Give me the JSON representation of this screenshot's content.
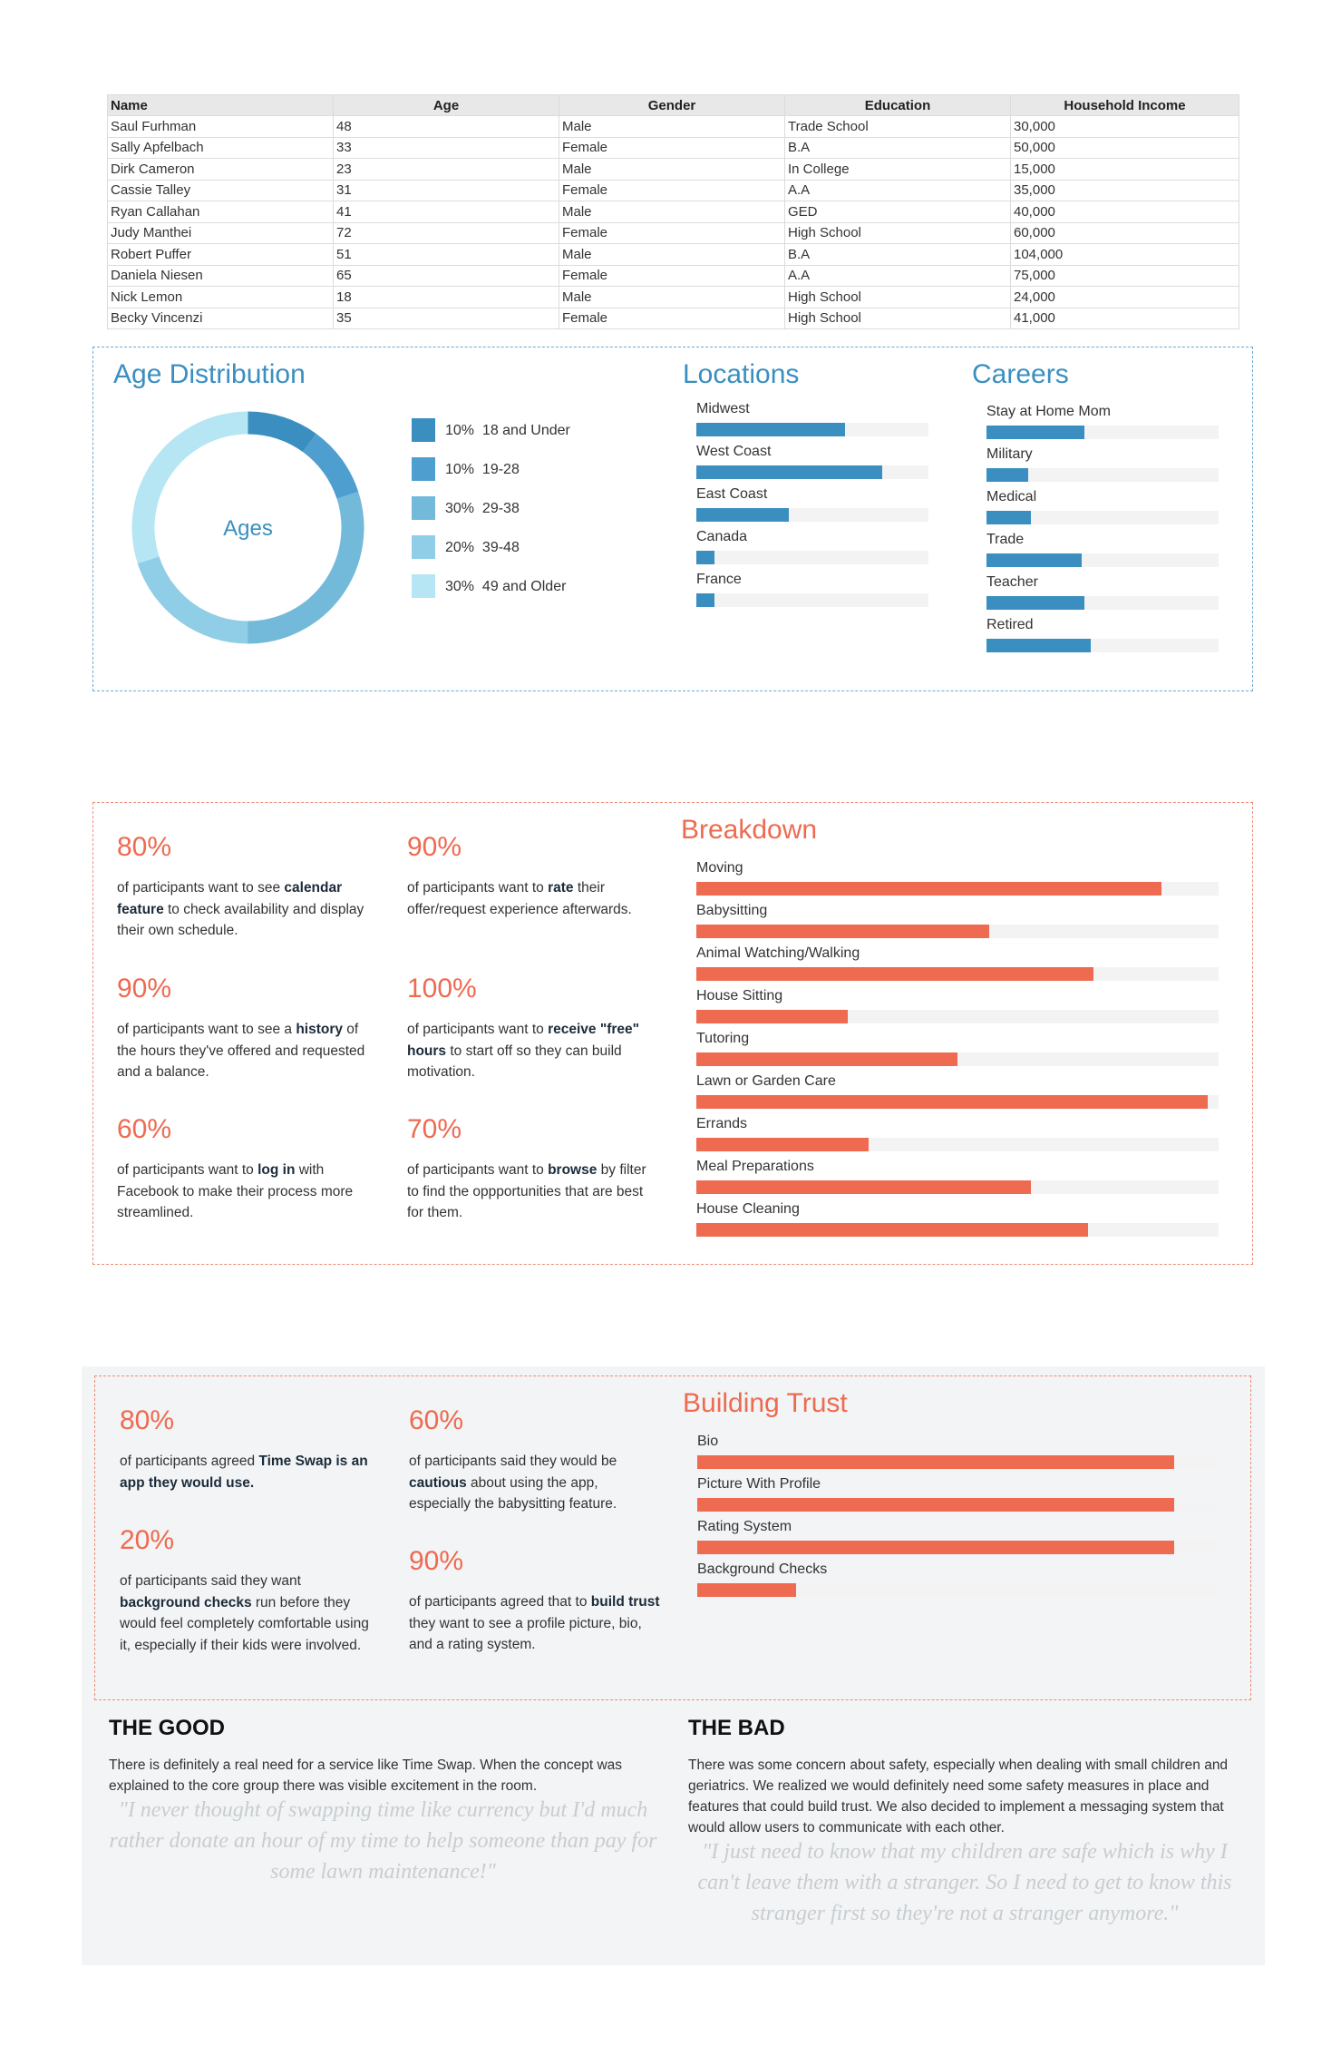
{
  "participants": {
    "headers": [
      "Name",
      "Age",
      "Gender",
      "Education",
      "Household Income"
    ],
    "rows": [
      [
        "Saul Furhman",
        "48",
        "Male",
        "Trade School",
        "30,000"
      ],
      [
        "Sally Apfelbach",
        "33",
        "Female",
        "B.A",
        "50,000"
      ],
      [
        "Dirk Cameron",
        "23",
        "Male",
        "In College",
        "15,000"
      ],
      [
        "Cassie Talley",
        "31",
        "Female",
        "A.A",
        "35,000"
      ],
      [
        "Ryan Callahan",
        "41",
        "Male",
        "GED",
        "40,000"
      ],
      [
        "Judy Manthei",
        "72",
        "Female",
        "High School",
        "60,000"
      ],
      [
        "Robert Puffer",
        "51",
        "Male",
        "B.A",
        "104,000"
      ],
      [
        "Daniela Niesen",
        "65",
        "Female",
        "A.A",
        "75,000"
      ],
      [
        "Nick Lemon",
        "18",
        "Male",
        "High School",
        "24,000"
      ],
      [
        "Becky Vincenzi",
        "35",
        "Female",
        "High School",
        "41,000"
      ]
    ]
  },
  "demographics": {
    "age_title": "Age Distribution",
    "donut_center": "Ages",
    "age_segments": [
      {
        "pct_label": "10%",
        "label": "18 and Under",
        "value": 10,
        "color": "#3a8fc0"
      },
      {
        "pct_label": "10%",
        "label": "19-28",
        "value": 10,
        "color": "#4e9fcf"
      },
      {
        "pct_label": "30%",
        "label": "29-38",
        "value": 30,
        "color": "#73b9da"
      },
      {
        "pct_label": "20%",
        "label": "39-48",
        "value": 20,
        "color": "#90cde6"
      },
      {
        "pct_label": "30%",
        "label": "49 and Older",
        "value": 30,
        "color": "#b6e6f3"
      }
    ],
    "locations_title": "Locations",
    "locations": [
      {
        "label": "Midwest",
        "value": 0.64
      },
      {
        "label": "West Coast",
        "value": 0.8
      },
      {
        "label": "East Coast",
        "value": 0.4
      },
      {
        "label": "Canada",
        "value": 0.08
      },
      {
        "label": "France",
        "value": 0.08
      }
    ],
    "careers_title": "Careers",
    "careers": [
      {
        "label": "Stay at Home Mom",
        "value": 0.42
      },
      {
        "label": "Military",
        "value": 0.18
      },
      {
        "label": "Medical",
        "value": 0.19
      },
      {
        "label": "Trade",
        "value": 0.41
      },
      {
        "label": "Teacher",
        "value": 0.42
      },
      {
        "label": "Retired",
        "value": 0.45
      }
    ],
    "bar_color": "#3a8fc0"
  },
  "features": {
    "stats": [
      {
        "pct": "80%",
        "html": "of participants want to see <b>calendar feature</b> to check availability and display their own schedule."
      },
      {
        "pct": "90%",
        "html": "of participants want to <b>rate</b> their offer/request experience afterwards."
      },
      {
        "pct": "90%",
        "html": "of participants want to see a <b>history</b> of the hours they've offered and requested and a balance."
      },
      {
        "pct": "100%",
        "html": "of participants want to <b>receive \"free\" hours</b> to start off so they can build motivation."
      },
      {
        "pct": "60%",
        "html": "of participants want to <b>log in</b> with Facebook to make their process more streamlined."
      },
      {
        "pct": "70%",
        "html": "of participants want to <b>browse</b> by filter to find the oppportunities that are best for them."
      }
    ],
    "breakdown_title": "Breakdown",
    "breakdown": [
      {
        "label": "Moving",
        "value": 0.89
      },
      {
        "label": "Babysitting",
        "value": 0.56
      },
      {
        "label": "Animal Watching/Walking",
        "value": 0.76
      },
      {
        "label": "House Sitting",
        "value": 0.29
      },
      {
        "label": "Tutoring",
        "value": 0.5
      },
      {
        "label": "Lawn or Garden Care",
        "value": 0.98
      },
      {
        "label": "Errands",
        "value": 0.33
      },
      {
        "label": "Meal Preparations",
        "value": 0.64
      },
      {
        "label": "House Cleaning",
        "value": 0.75
      }
    ],
    "bar_color": "#ee6a50"
  },
  "trust": {
    "stats": [
      {
        "pct": "80%",
        "html": "of participants agreed <b>Time Swap is an app they would use.</b>"
      },
      {
        "pct": "60%",
        "html": "of participants said they would be <b>cautious</b> about using the app, especially the babysitting feature."
      },
      {
        "pct": "20%",
        "html": "of participants said they want <b>background checks</b> run before they would feel completely comfortable using it, especially if their kids were involved."
      },
      {
        "pct": "90%",
        "html": "of participants agreed that to <b>build trust</b> they want to see a profile picture, bio, and a rating system."
      }
    ],
    "title": "Building Trust",
    "bars": [
      {
        "label": "Bio",
        "value": 0.92
      },
      {
        "label": "Picture With Profile",
        "value": 0.92
      },
      {
        "label": "Rating System",
        "value": 0.92
      },
      {
        "label": "Background Checks",
        "value": 0.19
      }
    ]
  },
  "verdict": {
    "good_title": "THE GOOD",
    "good_text": "There is definitely a real need for a service like Time Swap. When the concept was explained to the core group there was visible excitement in the room.",
    "good_quote": "\"I never thought of swapping time like currency but I'd much rather donate an hour of my time to help someone than pay for some lawn maintenance!\"",
    "bad_title": "THE BAD",
    "bad_text": "There was some concern about safety, especially when dealing with small children and geriatrics. We realized we would definitely need some safety measures in place and features that could build trust. We also decided to implement a messaging system that would allow users to communicate with each other.",
    "bad_quote": "\"I just need to know that my children are safe which is why I can't leave them with a stranger. So I need to get to know this stranger first so they're not a stranger anymore.\""
  }
}
